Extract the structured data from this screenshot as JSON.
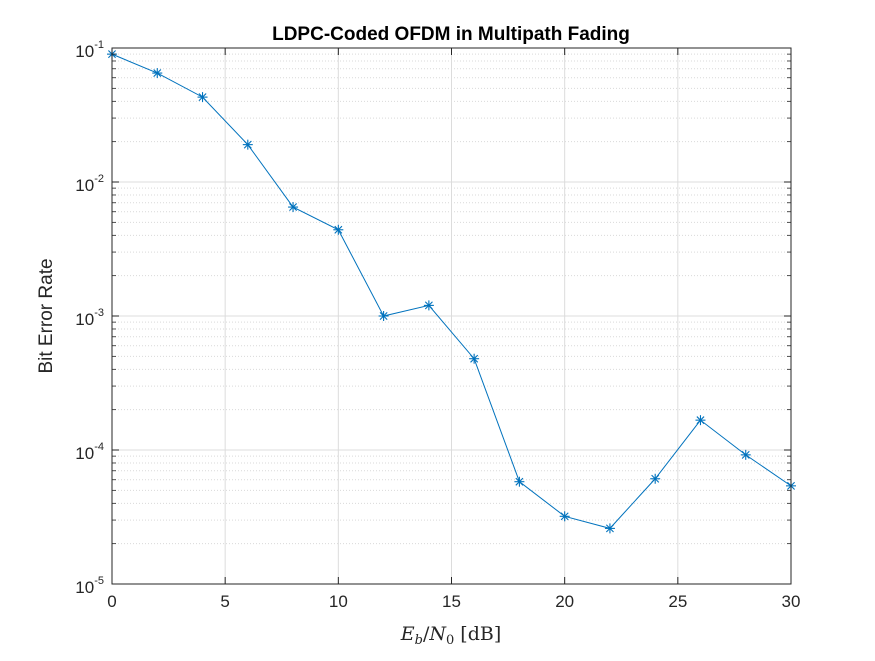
{
  "chart_data": {
    "type": "line",
    "title": "LDPC-Coded OFDM in Multipath Fading",
    "xlabel": "E_b/N_0 [dB]",
    "xlabel_parts": {
      "var": "E",
      "sub1": "b",
      "slash": "/",
      "var2": "N",
      "sub2": "0",
      "unit": "[dB]"
    },
    "ylabel": "Bit Error Rate",
    "y_scale": "log",
    "xlim": [
      0,
      30
    ],
    "ylim": [
      1e-05,
      0.1
    ],
    "x_ticks": [
      0,
      5,
      10,
      15,
      20,
      25,
      30
    ],
    "y_ticks": [
      {
        "value": 1e-05,
        "base": "10",
        "exp": "-5"
      },
      {
        "value": 0.0001,
        "base": "10",
        "exp": "-4"
      },
      {
        "value": 0.001,
        "base": "10",
        "exp": "-3"
      },
      {
        "value": 0.01,
        "base": "10",
        "exp": "-2"
      },
      {
        "value": 0.1,
        "base": "10",
        "exp": "-1"
      }
    ],
    "grid": true,
    "minor_grid": true,
    "marker": "asterisk",
    "series": [
      {
        "color": "#0072BD",
        "x": [
          0,
          2,
          4,
          6,
          8,
          10,
          12,
          14,
          16,
          18,
          20,
          22,
          24,
          26,
          28,
          30
        ],
        "y": [
          0.09,
          0.065,
          0.043,
          0.019,
          0.0065,
          0.0044,
          0.001,
          0.0012,
          0.00048,
          5.8e-05,
          3.2e-05,
          2.6e-05,
          6.1e-05,
          0.000167,
          9.2e-05,
          5.4e-05
        ]
      }
    ]
  }
}
